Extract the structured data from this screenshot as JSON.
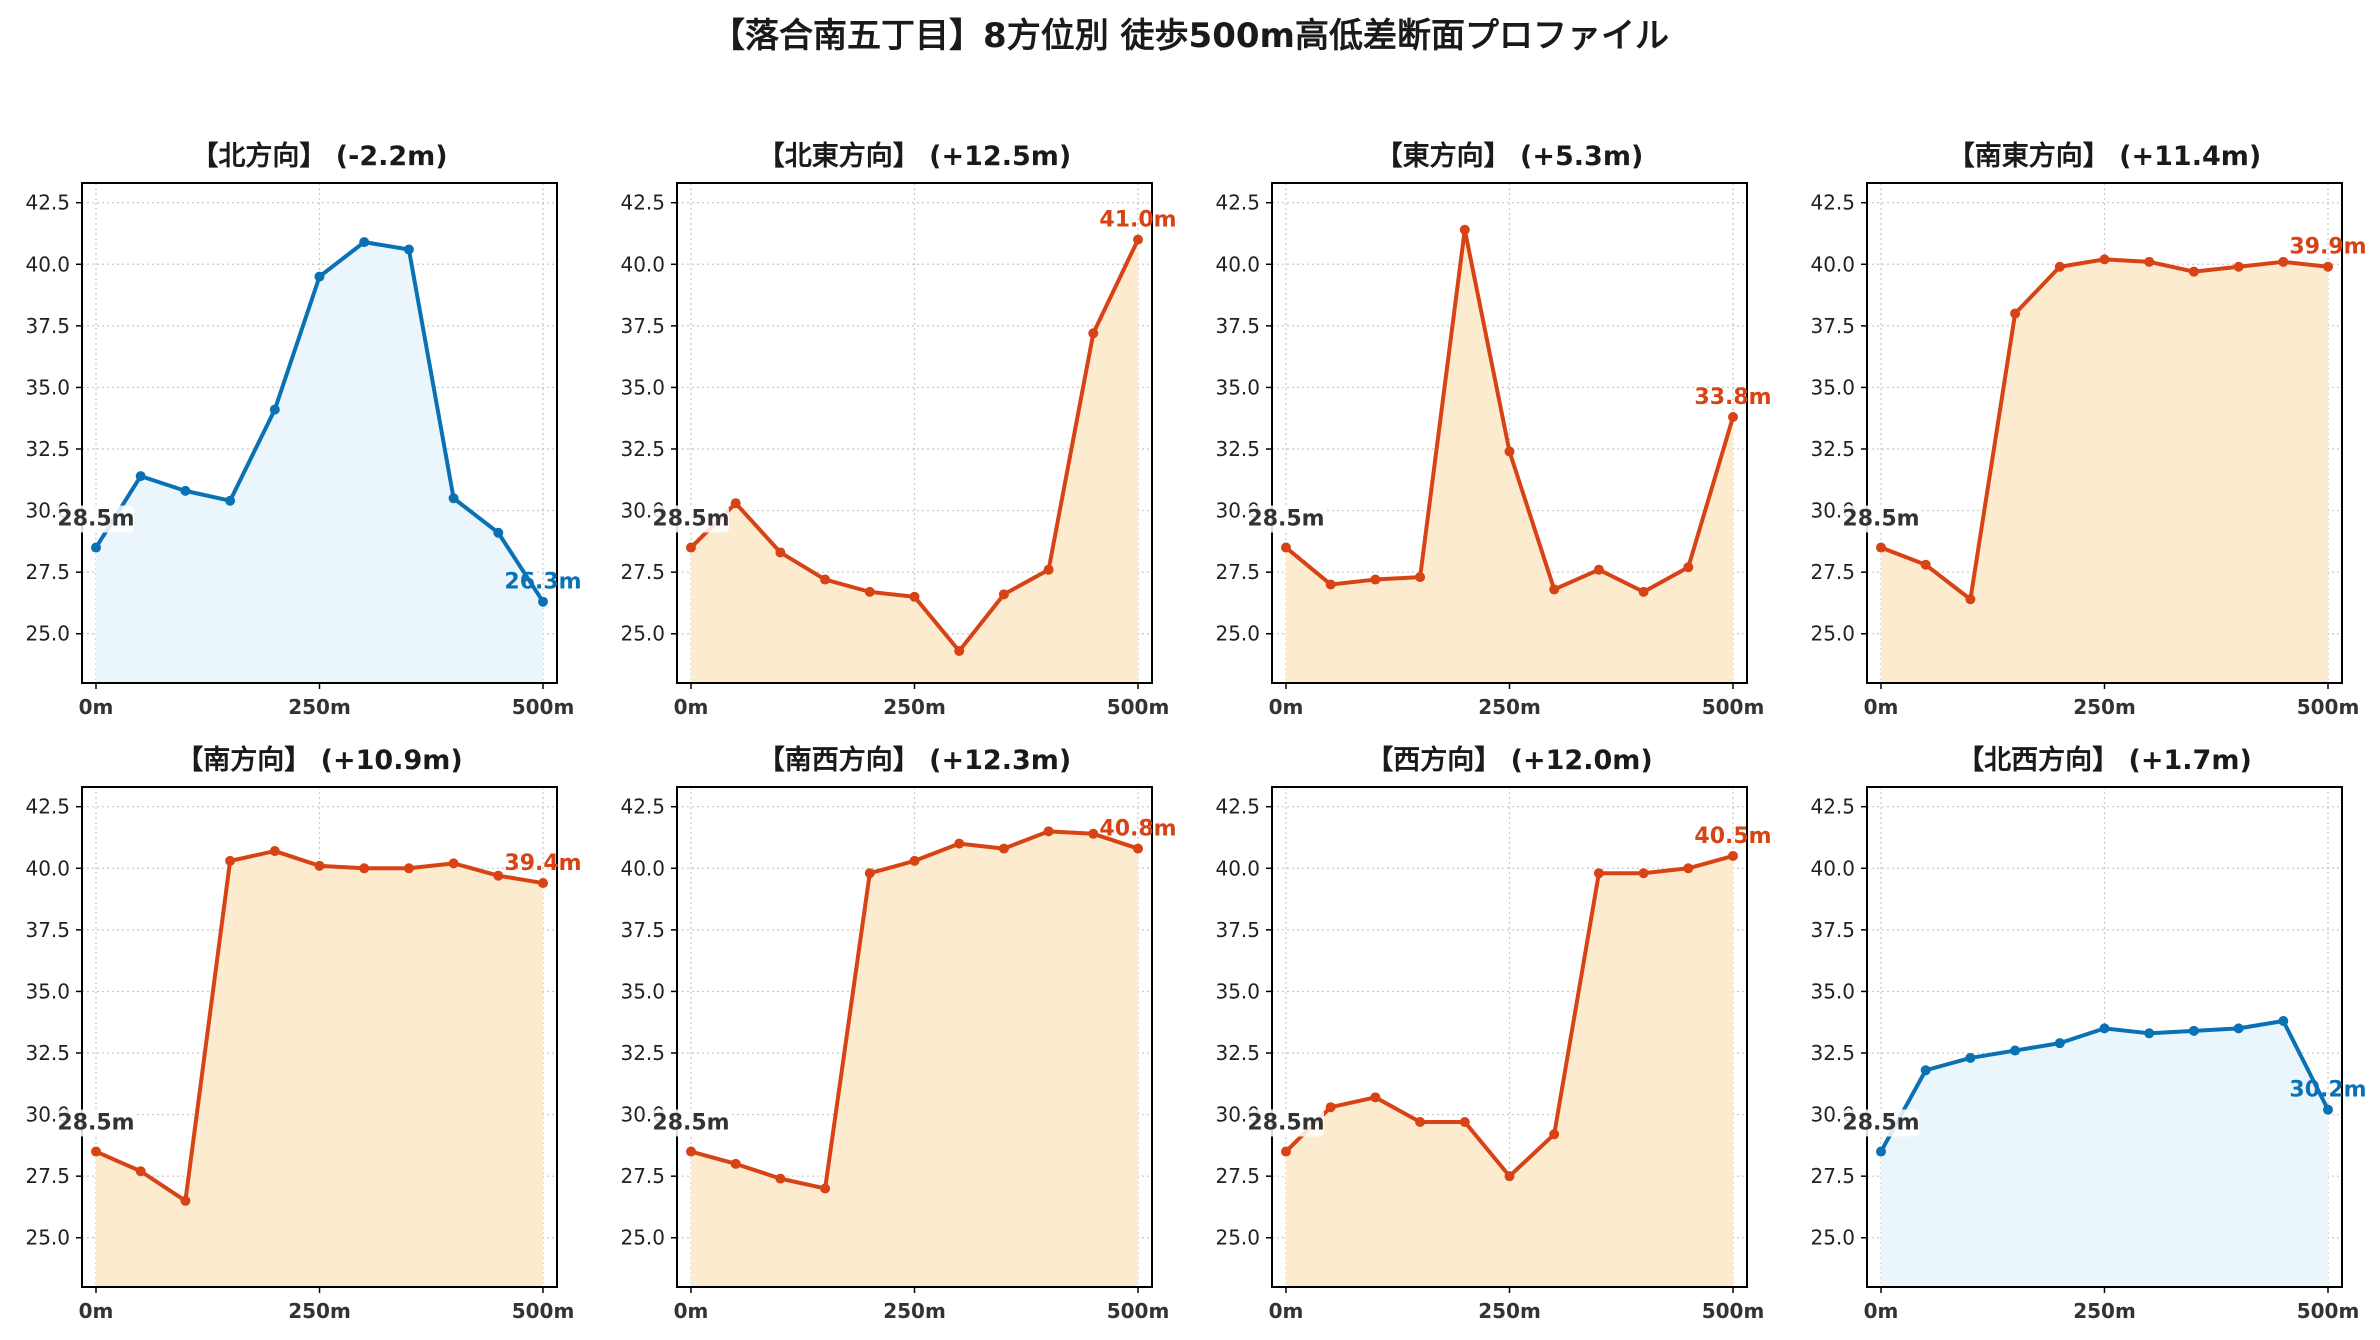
{
  "figure": {
    "title": "【落合南五丁目】8方位別 徒歩500m高低差断面プロファイル"
  },
  "chart_data": [
    {
      "type": "area",
      "title": "【北方向】 (-2.2m)",
      "x": [
        0,
        50,
        100,
        150,
        200,
        250,
        300,
        350,
        400,
        450,
        500
      ],
      "values": [
        28.5,
        31.4,
        30.8,
        30.4,
        34.1,
        39.5,
        40.9,
        40.6,
        30.5,
        29.1,
        26.3
      ],
      "color": "#0a72b4",
      "fill": "#eaf6fc",
      "start_label": "28.5m",
      "end_label": "26.3m",
      "ylim": [
        23.0,
        43.3
      ],
      "yticks": [
        25.0,
        27.5,
        30.0,
        32.5,
        35.0,
        37.5,
        40.0,
        42.5
      ],
      "ytick_labels": [
        "25.0",
        "27.5",
        "30.0",
        "32.5",
        "35.0",
        "37.5",
        "40.0",
        "42.5"
      ],
      "xticks": [
        0,
        250,
        500
      ],
      "xtick_labels": [
        "0m",
        "250m",
        "500m"
      ],
      "grid": true
    },
    {
      "type": "area",
      "title": "【北東方向】 (+12.5m)",
      "x": [
        0,
        50,
        100,
        150,
        200,
        250,
        300,
        350,
        400,
        450,
        500
      ],
      "values": [
        28.5,
        30.3,
        28.3,
        27.2,
        26.7,
        26.5,
        24.3,
        26.6,
        27.6,
        37.2,
        41.0
      ],
      "color": "#d84315",
      "fill": "#fdebd0",
      "start_label": "28.5m",
      "end_label": "41.0m",
      "ylim": [
        23.0,
        43.3
      ],
      "yticks": [
        25.0,
        27.5,
        30.0,
        32.5,
        35.0,
        37.5,
        40.0,
        42.5
      ],
      "ytick_labels": [
        "25.0",
        "27.5",
        "30.0",
        "32.5",
        "35.0",
        "37.5",
        "40.0",
        "42.5"
      ],
      "xticks": [
        0,
        250,
        500
      ],
      "xtick_labels": [
        "0m",
        "250m",
        "500m"
      ],
      "grid": true
    },
    {
      "type": "area",
      "title": "【東方向】 (+5.3m)",
      "x": [
        0,
        50,
        100,
        150,
        200,
        250,
        300,
        350,
        400,
        450,
        500
      ],
      "values": [
        28.5,
        27.0,
        27.2,
        27.3,
        41.4,
        32.4,
        26.8,
        27.6,
        26.7,
        27.7,
        33.8
      ],
      "color": "#d84315",
      "fill": "#fdebd0",
      "start_label": "28.5m",
      "end_label": "33.8m",
      "ylim": [
        23.0,
        43.3
      ],
      "yticks": [
        25.0,
        27.5,
        30.0,
        32.5,
        35.0,
        37.5,
        40.0,
        42.5
      ],
      "ytick_labels": [
        "25.0",
        "27.5",
        "30.0",
        "32.5",
        "35.0",
        "37.5",
        "40.0",
        "42.5"
      ],
      "xticks": [
        0,
        250,
        500
      ],
      "xtick_labels": [
        "0m",
        "250m",
        "500m"
      ],
      "grid": true
    },
    {
      "type": "area",
      "title": "【南東方向】 (+11.4m)",
      "x": [
        0,
        50,
        100,
        150,
        200,
        250,
        300,
        350,
        400,
        450,
        500
      ],
      "values": [
        28.5,
        27.8,
        26.4,
        38.0,
        39.9,
        40.2,
        40.1,
        39.7,
        39.9,
        40.1,
        39.9
      ],
      "color": "#d84315",
      "fill": "#fdebd0",
      "start_label": "28.5m",
      "end_label": "39.9m",
      "ylim": [
        23.0,
        43.3
      ],
      "yticks": [
        25.0,
        27.5,
        30.0,
        32.5,
        35.0,
        37.5,
        40.0,
        42.5
      ],
      "ytick_labels": [
        "25.0",
        "27.5",
        "30.0",
        "32.5",
        "35.0",
        "37.5",
        "40.0",
        "42.5"
      ],
      "xticks": [
        0,
        250,
        500
      ],
      "xtick_labels": [
        "0m",
        "250m",
        "500m"
      ],
      "grid": true
    },
    {
      "type": "area",
      "title": "【南方向】 (+10.9m)",
      "x": [
        0,
        50,
        100,
        150,
        200,
        250,
        300,
        350,
        400,
        450,
        500
      ],
      "values": [
        28.5,
        27.7,
        26.5,
        40.3,
        40.7,
        40.1,
        40.0,
        40.0,
        40.2,
        39.7,
        39.4
      ],
      "color": "#d84315",
      "fill": "#fdebd0",
      "start_label": "28.5m",
      "end_label": "39.4m",
      "ylim": [
        23.0,
        43.3
      ],
      "yticks": [
        25.0,
        27.5,
        30.0,
        32.5,
        35.0,
        37.5,
        40.0,
        42.5
      ],
      "ytick_labels": [
        "25.0",
        "27.5",
        "30.0",
        "32.5",
        "35.0",
        "37.5",
        "40.0",
        "42.5"
      ],
      "xticks": [
        0,
        250,
        500
      ],
      "xtick_labels": [
        "0m",
        "250m",
        "500m"
      ],
      "grid": true
    },
    {
      "type": "area",
      "title": "【南西方向】 (+12.3m)",
      "x": [
        0,
        50,
        100,
        150,
        200,
        250,
        300,
        350,
        400,
        450,
        500
      ],
      "values": [
        28.5,
        28.0,
        27.4,
        27.0,
        39.8,
        40.3,
        41.0,
        40.8,
        41.5,
        41.4,
        40.8
      ],
      "color": "#d84315",
      "fill": "#fdebd0",
      "start_label": "28.5m",
      "end_label": "40.8m",
      "ylim": [
        23.0,
        43.3
      ],
      "yticks": [
        25.0,
        27.5,
        30.0,
        32.5,
        35.0,
        37.5,
        40.0,
        42.5
      ],
      "ytick_labels": [
        "25.0",
        "27.5",
        "30.0",
        "32.5",
        "35.0",
        "37.5",
        "40.0",
        "42.5"
      ],
      "xticks": [
        0,
        250,
        500
      ],
      "xtick_labels": [
        "0m",
        "250m",
        "500m"
      ],
      "grid": true
    },
    {
      "type": "area",
      "title": "【西方向】 (+12.0m)",
      "x": [
        0,
        50,
        100,
        150,
        200,
        250,
        300,
        350,
        400,
        450,
        500
      ],
      "values": [
        28.5,
        30.3,
        30.7,
        29.7,
        29.7,
        27.5,
        29.2,
        39.8,
        39.8,
        40.0,
        40.5
      ],
      "color": "#d84315",
      "fill": "#fdebd0",
      "start_label": "28.5m",
      "end_label": "40.5m",
      "ylim": [
        23.0,
        43.3
      ],
      "yticks": [
        25.0,
        27.5,
        30.0,
        32.5,
        35.0,
        37.5,
        40.0,
        42.5
      ],
      "ytick_labels": [
        "25.0",
        "27.5",
        "30.0",
        "32.5",
        "35.0",
        "37.5",
        "40.0",
        "42.5"
      ],
      "xticks": [
        0,
        250,
        500
      ],
      "xtick_labels": [
        "0m",
        "250m",
        "500m"
      ],
      "grid": true
    },
    {
      "type": "area",
      "title": "【北西方向】 (+1.7m)",
      "x": [
        0,
        50,
        100,
        150,
        200,
        250,
        300,
        350,
        400,
        450,
        500
      ],
      "values": [
        28.5,
        31.8,
        32.3,
        32.6,
        32.9,
        33.5,
        33.3,
        33.4,
        33.5,
        33.8,
        30.2
      ],
      "color": "#0a72b4",
      "fill": "#eaf6fc",
      "start_label": "28.5m",
      "end_label": "30.2m",
      "ylim": [
        23.0,
        43.3
      ],
      "yticks": [
        25.0,
        27.5,
        30.0,
        32.5,
        35.0,
        37.5,
        40.0,
        42.5
      ],
      "ytick_labels": [
        "25.0",
        "27.5",
        "30.0",
        "32.5",
        "35.0",
        "37.5",
        "40.0",
        "42.5"
      ],
      "xticks": [
        0,
        250,
        500
      ],
      "xtick_labels": [
        "0m",
        "250m",
        "500m"
      ],
      "grid": true
    }
  ]
}
